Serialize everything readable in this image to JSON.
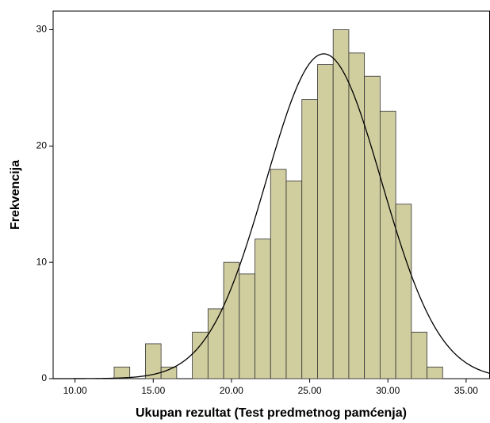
{
  "chart_data": {
    "type": "histogram",
    "xlabel": "Ukupan rezultat (Test predmetnog pamćenja)",
    "ylabel": "Frekvencija",
    "bins": [
      12.5,
      13.5,
      14.5,
      15.5,
      16.5,
      17.5,
      18.5,
      19.5,
      20.5,
      21.5,
      22.5,
      23.5,
      24.5,
      25.5,
      26.5,
      27.5,
      28.5,
      29.5,
      30.5,
      31.5,
      32.5,
      33.5
    ],
    "values": [
      1,
      0,
      3,
      1,
      0,
      4,
      6,
      10,
      9,
      12,
      18,
      17,
      24,
      27,
      30,
      28,
      26,
      23,
      15,
      4,
      1
    ],
    "color": "#d0cd9f",
    "normal_curve": {
      "mean": 25.9,
      "sd": 3.7
    },
    "xlim": [
      8.6,
      36.5
    ],
    "ylim": [
      0,
      31.6
    ],
    "xticks": [
      {
        "value": 10,
        "label": "10.00"
      },
      {
        "value": 15,
        "label": "15.00"
      },
      {
        "value": 20,
        "label": "20.00"
      },
      {
        "value": 25,
        "label": "25.00"
      },
      {
        "value": 30,
        "label": "30.00"
      },
      {
        "value": 35,
        "label": "35.00"
      }
    ],
    "yticks": [
      0,
      10,
      20,
      30
    ]
  }
}
